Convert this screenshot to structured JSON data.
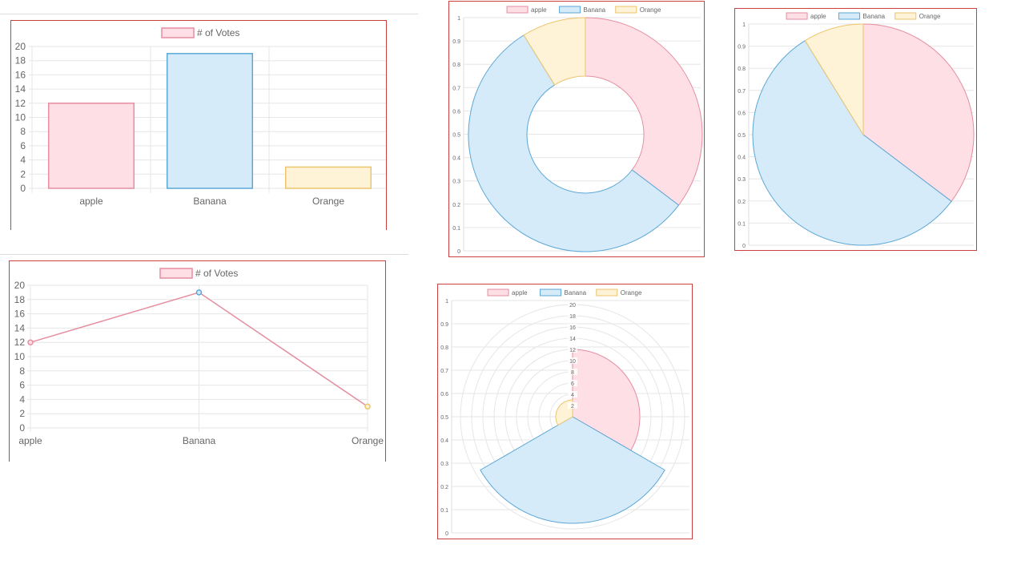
{
  "chart_data": [
    {
      "id": "bar",
      "type": "bar",
      "categories": [
        "apple",
        "Banana",
        "Orange"
      ],
      "series": [
        {
          "name": "# of Votes",
          "values": [
            12,
            19,
            3
          ]
        }
      ],
      "ylim": [
        0,
        20
      ],
      "yticks": [
        "20",
        "18",
        "16",
        "14",
        "12",
        "10",
        "8",
        "6",
        "4",
        "2",
        "0"
      ],
      "grid": true,
      "legend": "top"
    },
    {
      "id": "line",
      "type": "line",
      "categories": [
        "apple",
        "Banana",
        "Orange"
      ],
      "series": [
        {
          "name": "# of Votes",
          "values": [
            12,
            19,
            3
          ]
        }
      ],
      "ylim": [
        0,
        20
      ],
      "yticks": [
        "20",
        "18",
        "16",
        "14",
        "12",
        "10",
        "8",
        "6",
        "4",
        "2",
        "0"
      ],
      "grid": true,
      "legend": "top"
    },
    {
      "id": "doughnut",
      "type": "pie",
      "variant": "doughnut",
      "labels": [
        "apple",
        "Banana",
        "Orange"
      ],
      "values": [
        12,
        19,
        3
      ],
      "ylim": [
        0,
        1
      ],
      "yticks": [
        "1",
        "0.9",
        "0.8",
        "0.7",
        "0.6",
        "0.5",
        "0.4",
        "0.3",
        "0.2",
        "0.1",
        "0"
      ],
      "grid": true,
      "legend": "top"
    },
    {
      "id": "pie",
      "type": "pie",
      "labels": [
        "apple",
        "Banana",
        "Orange"
      ],
      "values": [
        12,
        19,
        3
      ],
      "ylim": [
        0,
        1
      ],
      "yticks": [
        "1",
        "0.9",
        "0.8",
        "0.7",
        "0.6",
        "0.5",
        "0.4",
        "0.3",
        "0.2",
        "0.1",
        "0"
      ],
      "grid": true,
      "legend": "top"
    },
    {
      "id": "polar",
      "type": "pie",
      "variant": "polarArea",
      "labels": [
        "apple",
        "Banana",
        "Orange"
      ],
      "values": [
        12,
        19,
        3
      ],
      "rlim": [
        0,
        20
      ],
      "rticks": [
        "2",
        "4",
        "6",
        "8",
        "10",
        "12",
        "14",
        "16",
        "18",
        "20"
      ],
      "ylim": [
        0,
        1
      ],
      "yticks": [
        "1",
        "0.9",
        "0.8",
        "0.7",
        "0.6",
        "0.5",
        "0.4",
        "0.3",
        "0.2",
        "0.1",
        "0"
      ],
      "grid": true,
      "legend": "top"
    }
  ],
  "colors": {
    "apple": {
      "fill": "#ffdfe6",
      "stroke": "#e58ea0"
    },
    "Banana": {
      "fill": "#d6ebf9",
      "stroke": "#5ba7d6"
    },
    "Orange": {
      "fill": "#fff3d7",
      "stroke": "#ecc46c"
    },
    "frame": "#cc4040",
    "grid": "#e6e6e6",
    "text": "#666666"
  }
}
